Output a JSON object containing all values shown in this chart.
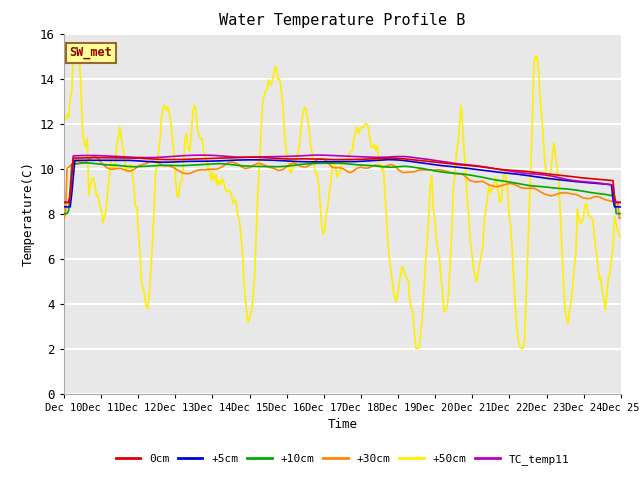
{
  "title": "Water Temperature Profile B",
  "xlabel": "Time",
  "ylabel": "Temperature(C)",
  "ylim": [
    0,
    16
  ],
  "yticks": [
    0,
    2,
    4,
    6,
    8,
    10,
    12,
    14,
    16
  ],
  "bg_color": "#e8e8e8",
  "fig_color": "#ffffff",
  "annotation_text": "SW_met",
  "annotation_color": "#8b0000",
  "annotation_bg": "#ffff99",
  "annotation_border": "#996633",
  "series": {
    "0cm": {
      "color": "#dd0000",
      "lw": 1.2
    },
    "+5cm": {
      "color": "#0000dd",
      "lw": 1.2
    },
    "+10cm": {
      "color": "#00aa00",
      "lw": 1.2
    },
    "+30cm": {
      "color": "#ff8800",
      "lw": 1.2
    },
    "+50cm": {
      "color": "#ffee00",
      "lw": 1.2
    },
    "TC_temp11": {
      "color": "#bb00bb",
      "lw": 1.2
    }
  },
  "n_points": 360,
  "xtick_days": [
    10,
    11,
    12,
    13,
    14,
    15,
    16,
    17,
    18,
    19,
    20,
    21,
    22,
    23,
    24,
    25
  ]
}
